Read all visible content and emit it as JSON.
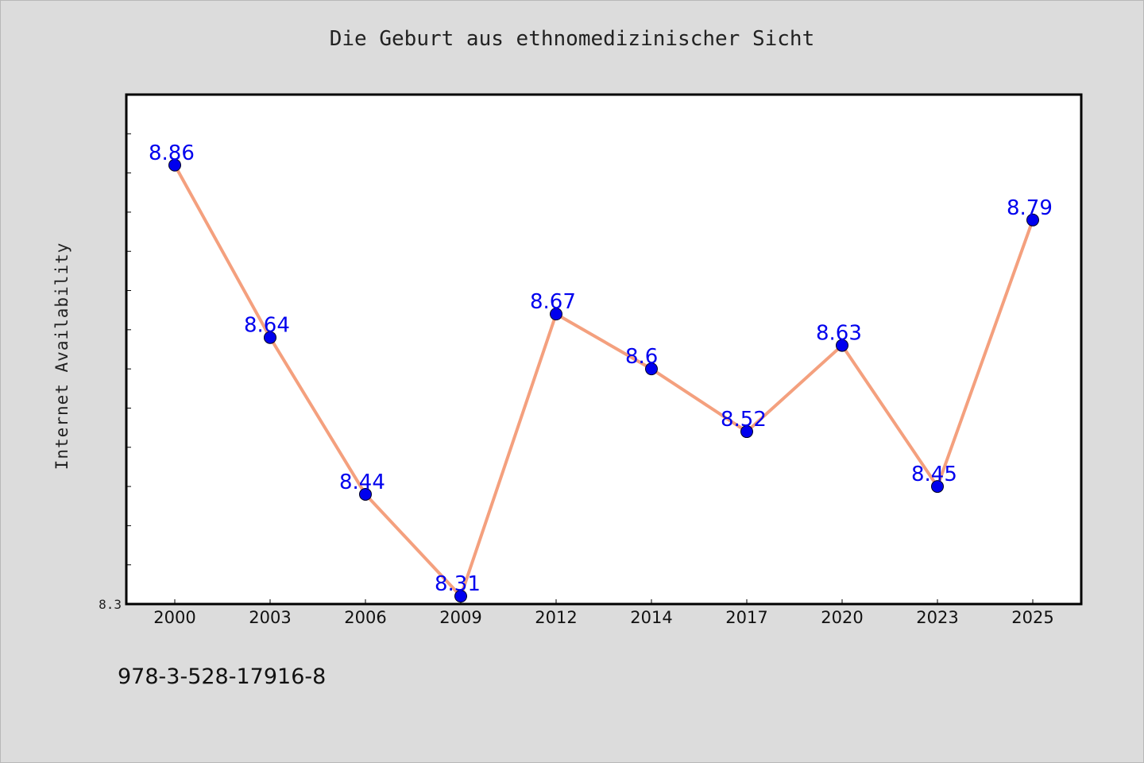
{
  "chart_data": {
    "type": "line",
    "title": "Die Geburt aus ethnomedizinischer Sicht",
    "xlabel": "",
    "ylabel": "Internet Availability",
    "categories": [
      "2000",
      "2003",
      "2006",
      "2009",
      "2012",
      "2014",
      "2017",
      "2020",
      "2023",
      "2025"
    ],
    "series": [
      {
        "values": [
          8.86,
          8.64,
          8.44,
          8.31,
          8.67,
          8.6,
          8.52,
          8.63,
          8.45,
          8.79
        ]
      }
    ],
    "data_labels": [
      "8.86",
      "8.64",
      "8.44",
      "8.31",
      "8.67",
      "8.6",
      "8.52",
      "8.63",
      "8.45",
      "8.79"
    ],
    "ylim": [
      8.3,
      8.95
    ],
    "y_tick_labels": [
      "8.3"
    ],
    "grid": false,
    "colors": {
      "line": "#f4a07e",
      "marker": "#0000ee",
      "label": "#0000ee",
      "plot_bg": "#ffffff",
      "page_bg": "#dcdcdc"
    }
  },
  "footer": {
    "isbn": "978-3-528-17916-8"
  }
}
